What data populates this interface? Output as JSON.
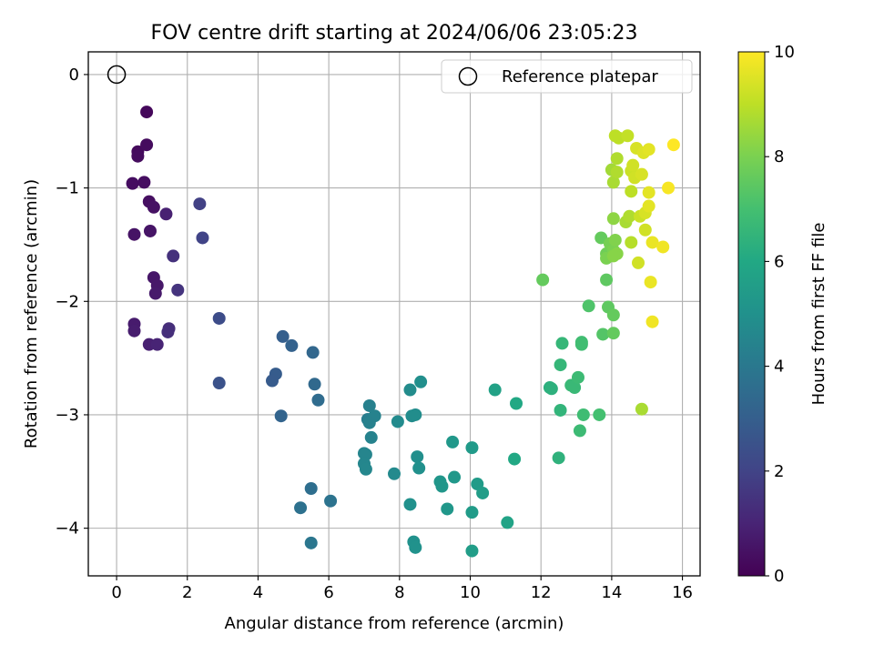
{
  "chart_data": {
    "type": "scatter",
    "title": "FOV centre drift starting at 2024/06/06 23:05:23",
    "xlabel": "Angular distance from reference (arcmin)",
    "ylabel": "Rotation from reference (arcmin)",
    "xlim": [
      -0.8,
      16.5
    ],
    "ylim": [
      -4.42,
      0.2
    ],
    "xticks": [
      0,
      2,
      4,
      6,
      8,
      10,
      12,
      14,
      16
    ],
    "yticks": [
      0,
      -1,
      -2,
      -3,
      -4
    ],
    "grid": true,
    "legend": {
      "placement": "upper right",
      "entries": [
        "Reference platepar"
      ]
    },
    "colorbar": {
      "label": "Hours from first FF file",
      "range": [
        0,
        10
      ],
      "ticks": [
        0,
        2,
        4,
        6,
        8,
        10
      ],
      "colormap": "viridis"
    },
    "reference": {
      "x": 0,
      "y": 0
    },
    "points": [
      [
        0.85,
        -0.33,
        0.2
      ],
      [
        0.6,
        -0.68,
        0.25
      ],
      [
        0.85,
        -0.62,
        0.3
      ],
      [
        0.6,
        -0.72,
        0.3
      ],
      [
        0.45,
        -0.96,
        0.35
      ],
      [
        0.78,
        -0.95,
        0.35
      ],
      [
        0.92,
        -1.12,
        0.4
      ],
      [
        1.05,
        -1.17,
        0.45
      ],
      [
        1.4,
        -1.23,
        0.9
      ],
      [
        0.5,
        -1.41,
        0.5
      ],
      [
        0.95,
        -1.38,
        0.55
      ],
      [
        1.6,
        -1.6,
        1.4
      ],
      [
        1.05,
        -1.79,
        0.6
      ],
      [
        1.15,
        -1.86,
        0.65
      ],
      [
        1.1,
        -1.93,
        0.7
      ],
      [
        1.73,
        -1.9,
        1.5
      ],
      [
        0.5,
        -2.2,
        0.75
      ],
      [
        0.5,
        -2.26,
        0.8
      ],
      [
        1.48,
        -2.24,
        1.3
      ],
      [
        1.45,
        -2.27,
        1.35
      ],
      [
        0.92,
        -2.38,
        0.9
      ],
      [
        1.15,
        -2.38,
        1.0
      ],
      [
        2.35,
        -1.14,
        1.9
      ],
      [
        2.43,
        -1.44,
        2.0
      ],
      [
        2.9,
        -2.15,
        2.3
      ],
      [
        2.9,
        -2.72,
        2.5
      ],
      [
        4.7,
        -2.31,
        3.0
      ],
      [
        4.95,
        -2.39,
        3.1
      ],
      [
        4.5,
        -2.64,
        2.9
      ],
      [
        4.4,
        -2.7,
        2.85
      ],
      [
        4.65,
        -3.01,
        3.2
      ],
      [
        5.55,
        -2.45,
        3.3
      ],
      [
        5.6,
        -2.73,
        3.4
      ],
      [
        5.7,
        -2.87,
        3.5
      ],
      [
        5.5,
        -3.65,
        3.6
      ],
      [
        5.2,
        -3.82,
        3.7
      ],
      [
        6.05,
        -3.76,
        3.8
      ],
      [
        5.5,
        -4.13,
        3.9
      ],
      [
        7.15,
        -2.92,
        4.3
      ],
      [
        7.1,
        -3.04,
        4.2
      ],
      [
        7.3,
        -3.01,
        4.4
      ],
      [
        7.15,
        -3.07,
        4.35
      ],
      [
        7.2,
        -3.2,
        4.4
      ],
      [
        7.0,
        -3.34,
        4.5
      ],
      [
        7.05,
        -3.35,
        4.5
      ],
      [
        7.0,
        -3.43,
        4.55
      ],
      [
        7.05,
        -3.48,
        4.6
      ],
      [
        7.85,
        -3.52,
        4.7
      ],
      [
        7.95,
        -3.06,
        4.75
      ],
      [
        8.3,
        -2.78,
        4.8
      ],
      [
        8.35,
        -3.01,
        4.8
      ],
      [
        8.45,
        -3.0,
        4.85
      ],
      [
        8.6,
        -2.71,
        4.9
      ],
      [
        8.5,
        -3.37,
        4.9
      ],
      [
        8.55,
        -3.47,
        4.95
      ],
      [
        8.3,
        -3.79,
        5.0
      ],
      [
        8.4,
        -4.12,
        5.0
      ],
      [
        8.45,
        -4.17,
        5.05
      ],
      [
        9.15,
        -3.59,
        5.2
      ],
      [
        9.2,
        -3.63,
        5.2
      ],
      [
        9.35,
        -3.83,
        5.25
      ],
      [
        9.5,
        -3.24,
        5.3
      ],
      [
        9.55,
        -3.55,
        5.3
      ],
      [
        10.05,
        -3.29,
        5.4
      ],
      [
        10.2,
        -3.61,
        5.45
      ],
      [
        10.35,
        -3.69,
        5.5
      ],
      [
        10.05,
        -3.86,
        5.45
      ],
      [
        10.05,
        -4.2,
        5.5
      ],
      [
        10.7,
        -2.78,
        5.7
      ],
      [
        11.05,
        -3.95,
        5.8
      ],
      [
        11.3,
        -2.9,
        6.0
      ],
      [
        11.25,
        -3.39,
        6.0
      ],
      [
        12.05,
        -1.81,
        7.6
      ],
      [
        12.25,
        -2.76,
        6.3
      ],
      [
        12.3,
        -2.77,
        6.35
      ],
      [
        12.6,
        -2.37,
        6.6
      ],
      [
        12.55,
        -2.56,
        6.6
      ],
      [
        12.55,
        -2.96,
        6.5
      ],
      [
        12.5,
        -3.38,
        6.4
      ],
      [
        12.85,
        -2.74,
        6.7
      ],
      [
        12.95,
        -2.76,
        6.7
      ],
      [
        13.05,
        -2.67,
        6.8
      ],
      [
        13.15,
        -2.36,
        6.9
      ],
      [
        13.15,
        -2.38,
        6.9
      ],
      [
        13.2,
        -3.0,
        6.85
      ],
      [
        13.1,
        -3.14,
        6.8
      ],
      [
        13.35,
        -2.04,
        7.2
      ],
      [
        13.65,
        -3.0,
        7.0
      ],
      [
        13.7,
        -1.44,
        7.6
      ],
      [
        13.75,
        -2.29,
        7.3
      ],
      [
        13.85,
        -1.81,
        7.5
      ],
      [
        13.9,
        -2.05,
        7.5
      ],
      [
        14.05,
        -2.28,
        7.6
      ],
      [
        14.05,
        -2.12,
        7.6
      ],
      [
        13.85,
        -1.58,
        7.8
      ],
      [
        13.95,
        -1.49,
        7.9
      ],
      [
        13.85,
        -1.62,
        8.0
      ],
      [
        14.05,
        -1.55,
        8.0
      ],
      [
        14.1,
        -1.46,
        8.1
      ],
      [
        14.05,
        -1.27,
        8.3
      ],
      [
        14.15,
        -1.58,
        8.2
      ],
      [
        14.05,
        -1.6,
        8.2
      ],
      [
        14.0,
        -0.84,
        8.6
      ],
      [
        14.05,
        -0.95,
        8.7
      ],
      [
        14.15,
        -0.74,
        8.8
      ],
      [
        14.15,
        -0.86,
        8.8
      ],
      [
        14.1,
        -0.54,
        9.0
      ],
      [
        14.2,
        -0.56,
        9.0
      ],
      [
        14.4,
        -1.3,
        8.7
      ],
      [
        14.5,
        -1.25,
        8.8
      ],
      [
        14.55,
        -1.48,
        8.9
      ],
      [
        14.45,
        -0.54,
        9.1
      ],
      [
        14.55,
        -1.03,
        9.0
      ],
      [
        14.55,
        -0.85,
        9.2
      ],
      [
        14.6,
        -0.8,
        9.3
      ],
      [
        14.65,
        -0.91,
        9.3
      ],
      [
        14.7,
        -0.65,
        9.4
      ],
      [
        14.75,
        -1.66,
        9.3
      ],
      [
        14.8,
        -1.25,
        9.2
      ],
      [
        14.85,
        -0.88,
        9.4
      ],
      [
        14.85,
        -2.95,
        8.7
      ],
      [
        14.95,
        -1.37,
        9.3
      ],
      [
        14.95,
        -1.22,
        9.4
      ],
      [
        14.9,
        -0.69,
        9.5
      ],
      [
        15.05,
        -0.66,
        9.6
      ],
      [
        15.05,
        -1.04,
        9.6
      ],
      [
        15.05,
        -1.16,
        9.6
      ],
      [
        15.1,
        -1.83,
        9.7
      ],
      [
        15.15,
        -1.48,
        9.7
      ],
      [
        15.15,
        -2.18,
        9.8
      ],
      [
        15.45,
        -1.52,
        9.8
      ],
      [
        15.6,
        -1.0,
        9.9
      ],
      [
        15.75,
        -0.62,
        10.0
      ]
    ]
  }
}
